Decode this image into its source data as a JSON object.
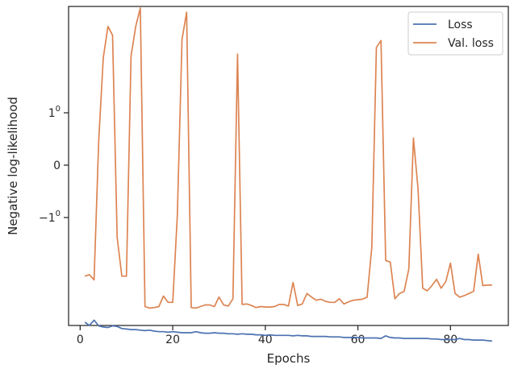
{
  "chart_data": {
    "type": "line",
    "xlabel": "Epochs",
    "ylabel": "Negative log-likelihood",
    "xlim": [
      -2.5,
      92.5
    ],
    "x_ticks": [
      0,
      20,
      40,
      60,
      80
    ],
    "y_scale": "symlog",
    "y_scale_note": "ticks printed at -10^0, 0, 10^0",
    "y_ticks": [
      {
        "value": -1,
        "base": "−1",
        "exp": "0"
      },
      {
        "value": 0,
        "base": "0",
        "exp": ""
      },
      {
        "value": 1,
        "base": "1",
        "exp": "0"
      }
    ],
    "grid": false,
    "legend_position": "top-right",
    "series": [
      {
        "name": "Loss",
        "color": "#4c72b0",
        "x": [
          1,
          2,
          3,
          4,
          5,
          6,
          7,
          8,
          9,
          10,
          11,
          12,
          13,
          14,
          15,
          16,
          17,
          18,
          19,
          20,
          21,
          22,
          23,
          24,
          25,
          26,
          27,
          28,
          29,
          30,
          31,
          32,
          33,
          34,
          35,
          36,
          37,
          38,
          39,
          40,
          41,
          42,
          43,
          44,
          45,
          46,
          47,
          48,
          49,
          50,
          51,
          52,
          53,
          54,
          55,
          56,
          57,
          58,
          59,
          60,
          61,
          62,
          63,
          64,
          65,
          66,
          67,
          68,
          69,
          70,
          71,
          72,
          73,
          74,
          75,
          76,
          77,
          78,
          79,
          80,
          81,
          82,
          83,
          84,
          85,
          86,
          87,
          88,
          89
        ],
        "y": [
          -3.0,
          -3.06,
          -2.96,
          -3.07,
          -3.09,
          -3.1,
          -3.07,
          -3.08,
          -3.12,
          -3.13,
          -3.14,
          -3.14,
          -3.15,
          -3.16,
          -3.15,
          -3.17,
          -3.18,
          -3.18,
          -3.19,
          -3.18,
          -3.19,
          -3.2,
          -3.2,
          -3.2,
          -3.18,
          -3.2,
          -3.21,
          -3.21,
          -3.2,
          -3.21,
          -3.21,
          -3.22,
          -3.22,
          -3.23,
          -3.22,
          -3.23,
          -3.23,
          -3.24,
          -3.24,
          -3.25,
          -3.24,
          -3.25,
          -3.25,
          -3.25,
          -3.25,
          -3.26,
          -3.25,
          -3.26,
          -3.26,
          -3.27,
          -3.27,
          -3.27,
          -3.27,
          -3.28,
          -3.28,
          -3.28,
          -3.29,
          -3.29,
          -3.29,
          -3.29,
          -3.3,
          -3.3,
          -3.3,
          -3.3,
          -3.31,
          -3.26,
          -3.29,
          -3.3,
          -3.3,
          -3.31,
          -3.31,
          -3.31,
          -3.31,
          -3.31,
          -3.31,
          -3.32,
          -3.32,
          -3.33,
          -3.33,
          -3.33,
          -3.33,
          -3.31,
          -3.33,
          -3.33,
          -3.34,
          -3.34,
          -3.34,
          -3.35,
          -3.36
        ]
      },
      {
        "name": "Val. loss",
        "color": "#dd8452",
        "x": [
          1,
          2,
          3,
          4,
          5,
          6,
          7,
          8,
          9,
          10,
          11,
          12,
          13,
          14,
          15,
          16,
          17,
          18,
          19,
          20,
          21,
          22,
          23,
          24,
          25,
          26,
          27,
          28,
          29,
          30,
          31,
          32,
          33,
          34,
          35,
          36,
          37,
          38,
          39,
          40,
          41,
          42,
          43,
          44,
          45,
          46,
          47,
          48,
          49,
          50,
          51,
          52,
          53,
          54,
          55,
          56,
          57,
          58,
          59,
          60,
          61,
          62,
          63,
          64,
          65,
          66,
          67,
          68,
          69,
          70,
          71,
          72,
          73,
          74,
          75,
          76,
          77,
          78,
          79,
          80,
          81,
          82,
          83,
          84,
          85,
          86,
          87,
          88,
          89
        ],
        "y": [
          -2.12,
          -2.09,
          -2.19,
          0.45,
          2.05,
          2.65,
          2.48,
          -1.38,
          -2.12,
          -2.12,
          2.08,
          2.65,
          3.0,
          -2.7,
          -2.73,
          -2.72,
          -2.7,
          -2.5,
          -2.62,
          -2.62,
          -0.95,
          2.4,
          2.92,
          -2.72,
          -2.73,
          -2.7,
          -2.67,
          -2.67,
          -2.7,
          -2.52,
          -2.67,
          -2.69,
          -2.55,
          2.12,
          -2.66,
          -2.65,
          -2.68,
          -2.72,
          -2.7,
          -2.71,
          -2.71,
          -2.7,
          -2.66,
          -2.66,
          -2.69,
          -2.24,
          -2.68,
          -2.65,
          -2.45,
          -2.52,
          -2.58,
          -2.56,
          -2.6,
          -2.62,
          -2.62,
          -2.55,
          -2.65,
          -2.61,
          -2.58,
          -2.57,
          -2.56,
          -2.52,
          -1.57,
          2.25,
          2.38,
          -1.82,
          -1.85,
          -2.55,
          -2.45,
          -2.41,
          -1.98,
          0.52,
          -0.45,
          -2.35,
          -2.4,
          -2.3,
          -2.18,
          -2.35,
          -2.22,
          -1.87,
          -2.45,
          -2.52,
          -2.49,
          -2.45,
          -2.41,
          -1.7,
          -2.3,
          -2.29,
          -2.29
        ]
      }
    ]
  }
}
